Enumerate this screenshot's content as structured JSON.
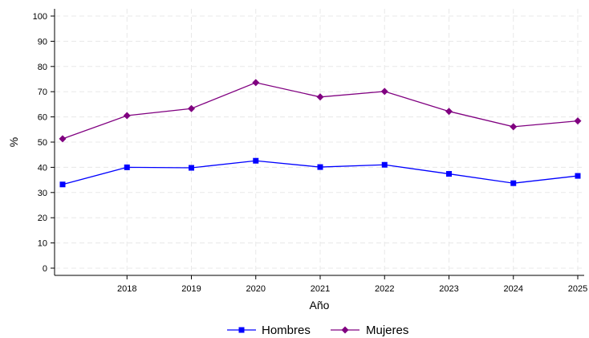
{
  "chart_data": {
    "type": "line",
    "title": "",
    "xlabel": "Año",
    "ylabel": "%",
    "x": [
      2017,
      2018,
      2019,
      2020,
      2021,
      2022,
      2023,
      2024,
      2025
    ],
    "x_tick_labels": [
      "2018",
      "2019",
      "2020",
      "2021",
      "2022",
      "2023",
      "2024",
      "2025"
    ],
    "x_ticks": [
      2018,
      2019,
      2020,
      2021,
      2022,
      2023,
      2024,
      2025
    ],
    "xlim": [
      2017,
      2025.1
    ],
    "ylim": [
      0,
      100
    ],
    "y_ticks": [
      0,
      10,
      20,
      30,
      40,
      50,
      60,
      70,
      80,
      90,
      100
    ],
    "y_tick_labels": [
      "0",
      "10",
      "20",
      "30",
      "40",
      "50",
      "60",
      "70",
      "80",
      "90",
      "100"
    ],
    "grid": true,
    "legend_position": "bottom",
    "series": [
      {
        "name": "Hombres",
        "color": "#0000ff",
        "marker": "square",
        "values": [
          33.2,
          40.0,
          39.8,
          42.6,
          40.1,
          41.0,
          37.4,
          33.7,
          36.6
        ]
      },
      {
        "name": "Mujeres",
        "color": "#800080",
        "marker": "diamond",
        "values": [
          51.3,
          60.5,
          63.3,
          73.6,
          67.9,
          70.1,
          62.2,
          56.1,
          58.4
        ]
      }
    ]
  }
}
